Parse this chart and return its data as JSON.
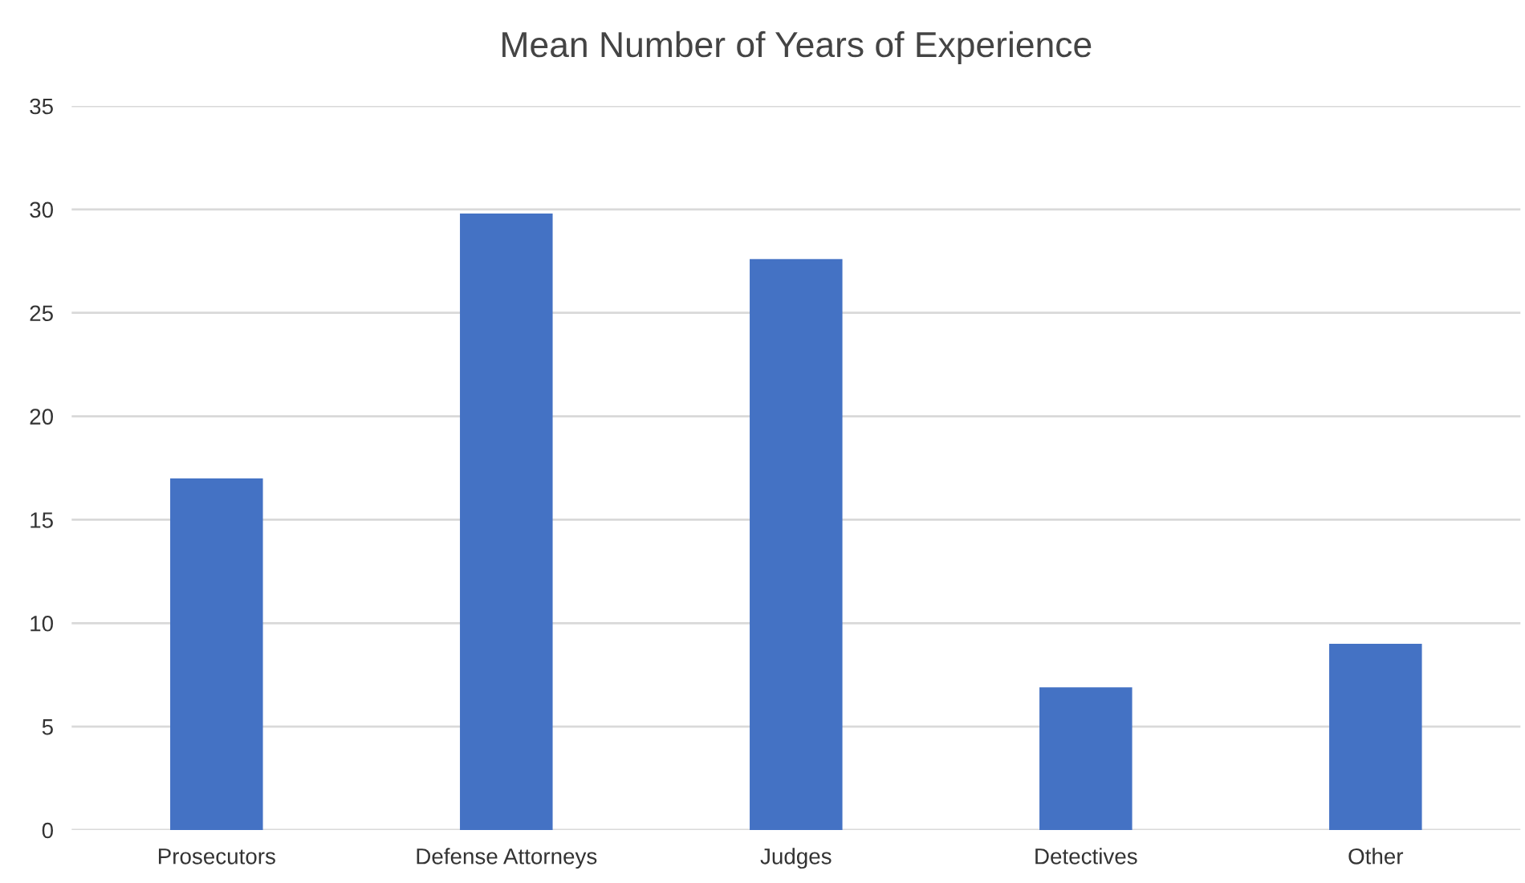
{
  "chart_data": {
    "type": "bar",
    "title": "Mean Number of Years of Experience",
    "categories": [
      "Prosecutors",
      "Defense Attorneys",
      "Judges",
      "Detectives",
      "Other"
    ],
    "values": [
      17,
      29.8,
      27.6,
      6.9,
      9.0
    ],
    "color": "#4472c4",
    "ylim": [
      0,
      35
    ],
    "yticks": [
      0,
      5,
      10,
      15,
      20,
      25,
      30,
      35
    ],
    "grid": "y"
  }
}
